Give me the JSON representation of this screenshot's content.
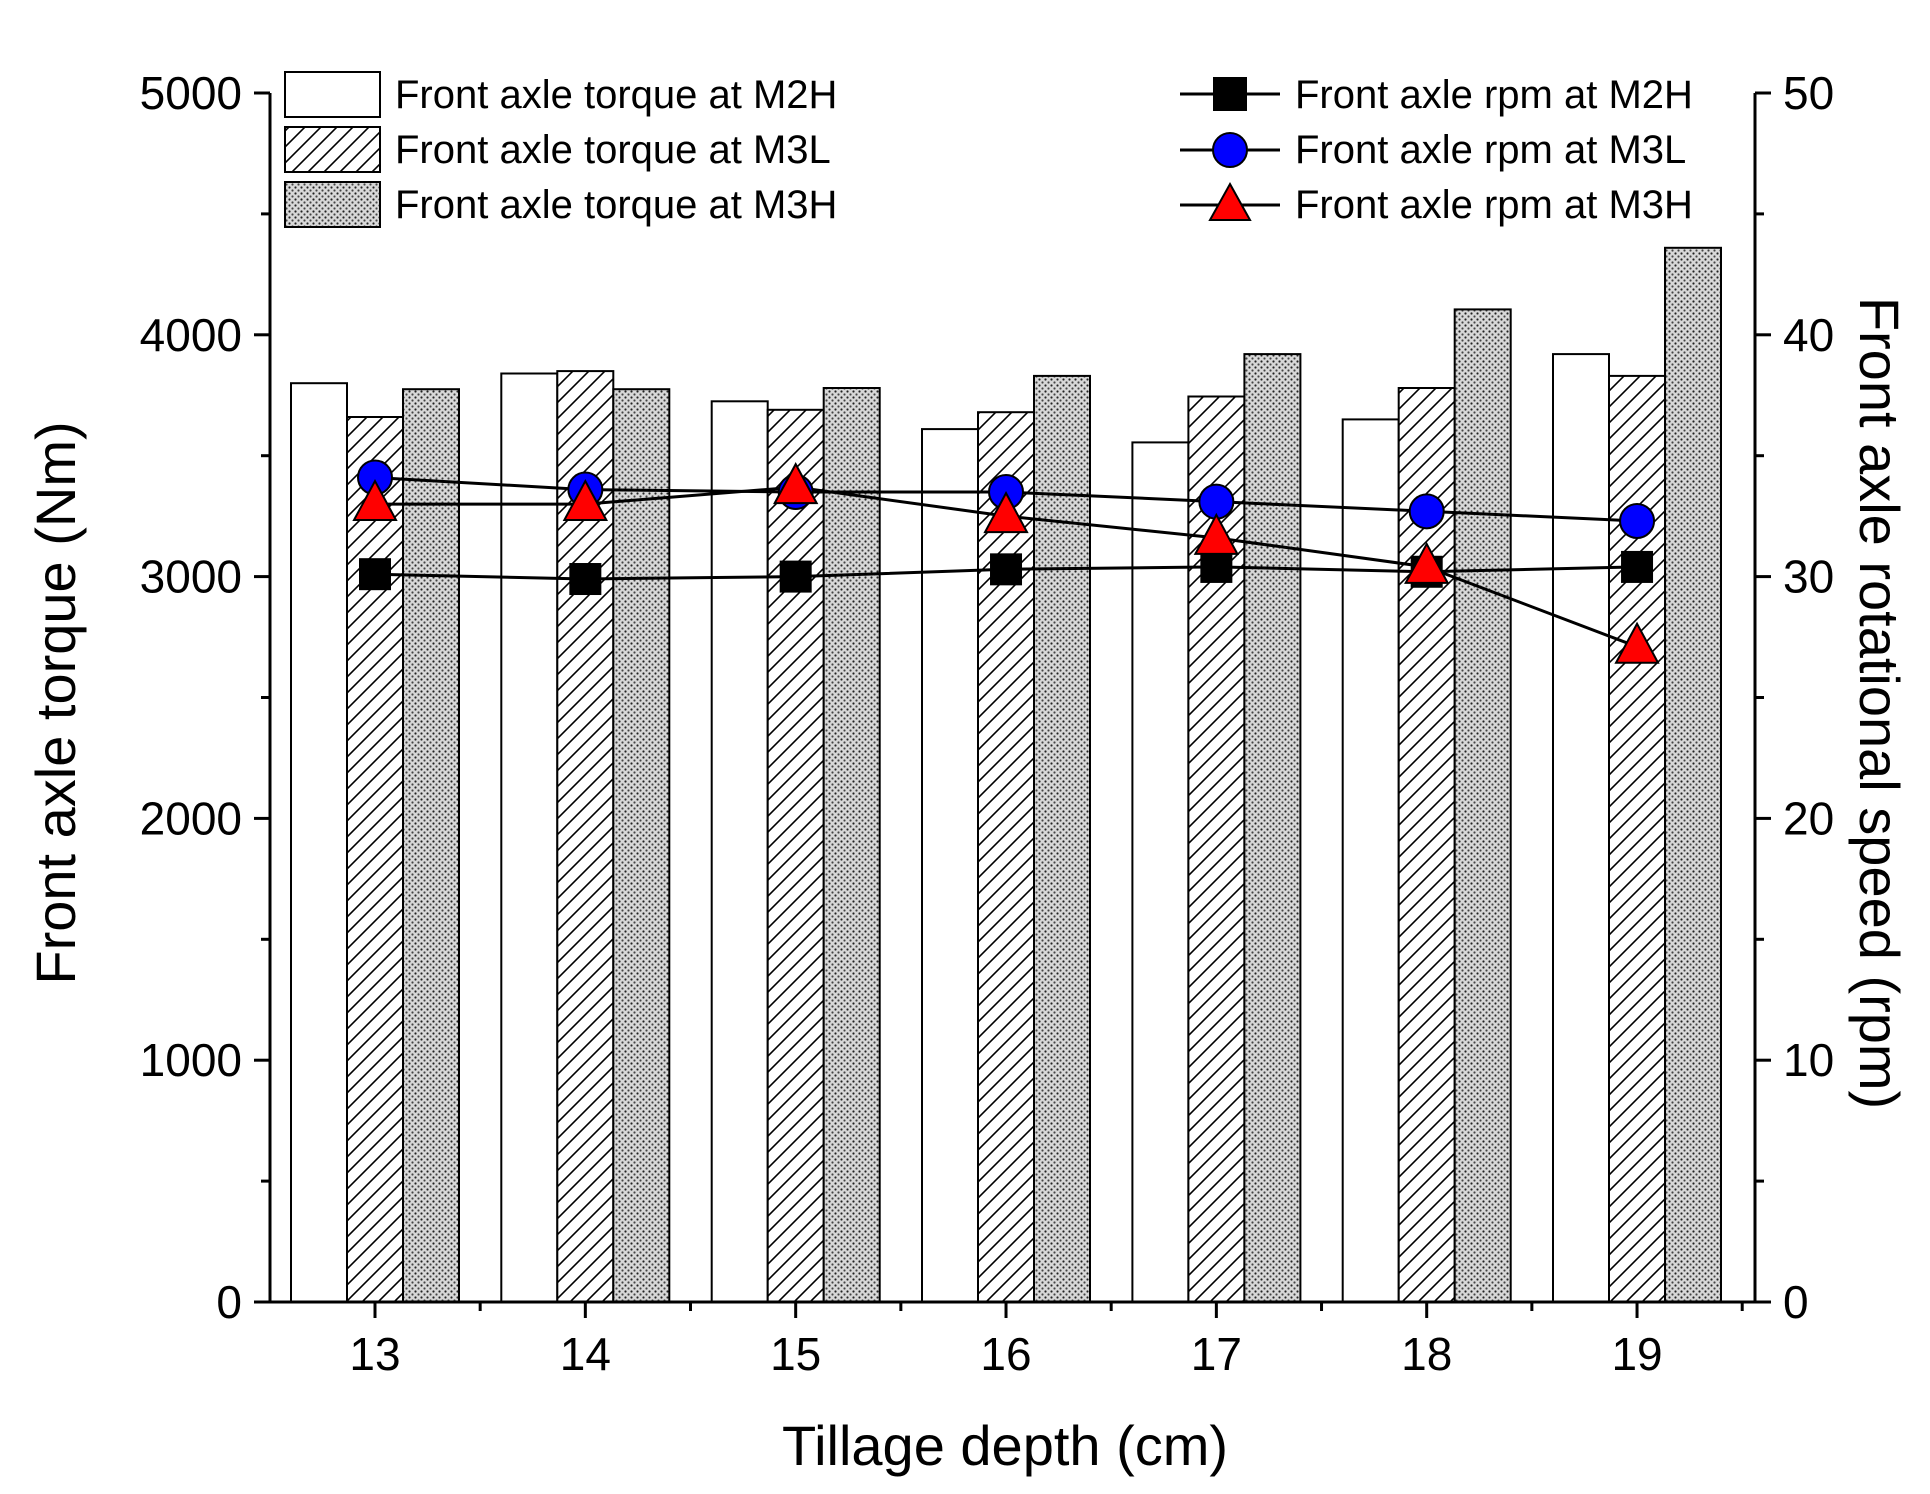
{
  "chart_data": {
    "type": "bar",
    "title": "",
    "xlabel": "Tillage depth (cm)",
    "ylabel": "Front axle torque (Nm)",
    "y2label": "Front axle rotational speed (rpm)",
    "categories": [
      "13",
      "14",
      "15",
      "16",
      "17",
      "18",
      "19"
    ],
    "ylim": [
      0,
      5000
    ],
    "y2lim": [
      0,
      50
    ],
    "yticks": [
      "0",
      "1000",
      "2000",
      "3000",
      "4000",
      "5000"
    ],
    "y2ticks": [
      "0",
      "10",
      "20",
      "30",
      "40",
      "50"
    ],
    "bar_series": [
      {
        "name": "Front axle torque at M2H",
        "pattern": "white",
        "values": [
          3800,
          3840,
          3725,
          3610,
          3555,
          3650,
          3920
        ]
      },
      {
        "name": "Front axle torque at M3L",
        "pattern": "hatch",
        "values": [
          3660,
          3850,
          3690,
          3680,
          3745,
          3780,
          3830
        ]
      },
      {
        "name": "Front axle torque at M3H",
        "pattern": "dots",
        "values": [
          3775,
          3775,
          3780,
          3830,
          3920,
          4105,
          4360
        ]
      }
    ],
    "line_series": [
      {
        "name": "Front axle rpm at M2H",
        "marker": "square",
        "color": "#000000",
        "values": [
          30.1,
          29.9,
          30.0,
          30.3,
          30.4,
          30.2,
          30.4
        ]
      },
      {
        "name": "Front axle rpm at M3L",
        "marker": "circle",
        "color": "#0000ff",
        "values": [
          34.1,
          33.6,
          33.5,
          33.5,
          33.1,
          32.7,
          32.3
        ]
      },
      {
        "name": "Front axle rpm at M3H",
        "marker": "triangle",
        "color": "#ff0000",
        "values": [
          33.0,
          33.0,
          33.7,
          32.5,
          31.6,
          30.4,
          27.1
        ]
      }
    ],
    "legend": "top"
  }
}
